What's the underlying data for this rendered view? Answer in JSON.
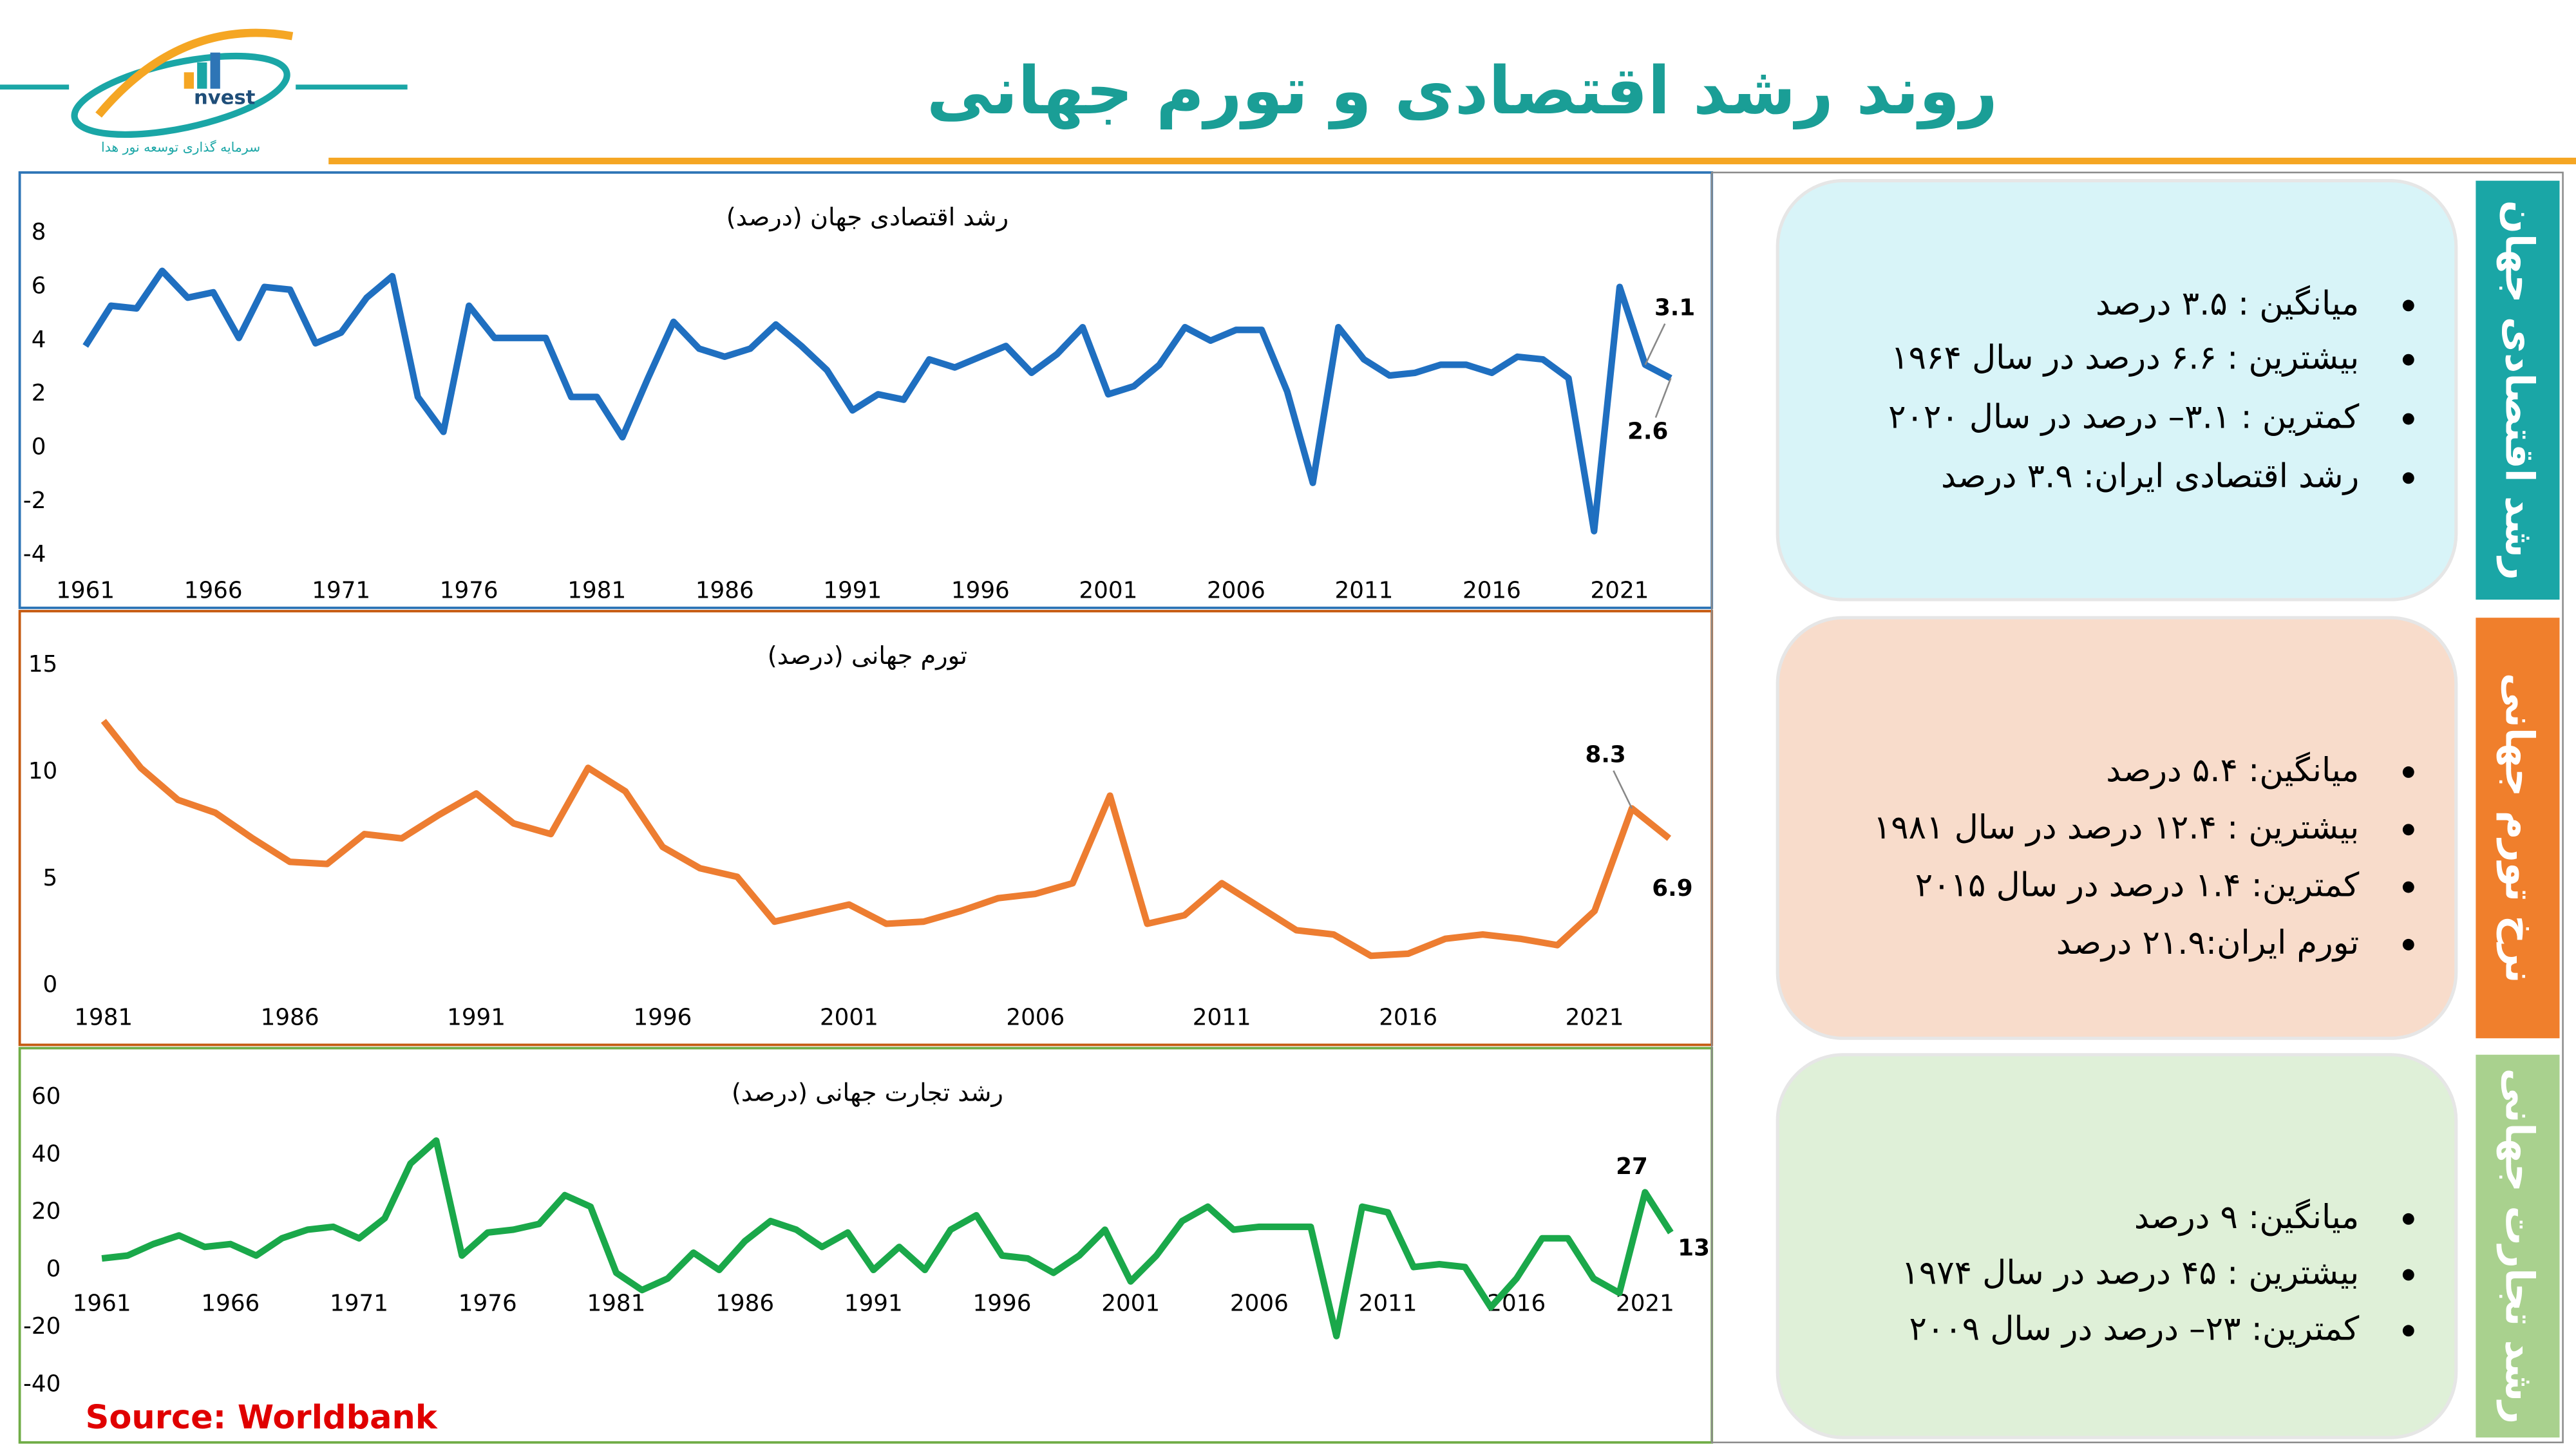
{
  "title": "روند رشد اقتصادی و تورم جهانی",
  "logo": {
    "text": "nvest",
    "caption": "سرمایه گذاری توسعه نور هدا"
  },
  "source": "Source: Worldbank",
  "panels": [
    {
      "label": "رشد اقتصادی جهان",
      "bullets": [
        "میانگین : ۳.۵ درصد",
        "بیشترین : ۶.۶ درصد در سال ۱۹۶۴",
        "کمترین : ۳.۱– درصد در سال ۲۰۲۰",
        "رشد اقتصادی ایران: ۳.۹ درصد"
      ]
    },
    {
      "label": "نرخ تورم جهانی",
      "bullets": [
        "میانگین: ۵.۴ درصد",
        "بیشترین : ۱۲.۴ درصد در سال ۱۹۸۱",
        "کمترین: ۱.۴ درصد در سال ۲۰۱۵",
        "تورم ایران:۲۱.۹ درصد"
      ]
    },
    {
      "label": "رشد تجارت جهانی",
      "bullets": [
        "میانگین:  ۹ درصد",
        "بیشترین : ۴۵ درصد در سال ۱۹۷۴",
        "کمترین: ۲۳– درصد در سال ۲۰۰۹"
      ]
    }
  ],
  "chart_data": [
    {
      "type": "line",
      "title": "رشد اقتصادی جهان (درصد)",
      "x": [
        1961,
        1962,
        1963,
        1964,
        1965,
        1966,
        1967,
        1968,
        1969,
        1970,
        1971,
        1972,
        1973,
        1974,
        1975,
        1976,
        1977,
        1978,
        1979,
        1980,
        1981,
        1982,
        1983,
        1984,
        1985,
        1986,
        1987,
        1988,
        1989,
        1990,
        1991,
        1992,
        1993,
        1994,
        1995,
        1996,
        1997,
        1998,
        1999,
        2000,
        2001,
        2002,
        2003,
        2004,
        2005,
        2006,
        2007,
        2008,
        2009,
        2010,
        2011,
        2012,
        2013,
        2014,
        2015,
        2016,
        2017,
        2018,
        2019,
        2020,
        2021,
        2022,
        2023
      ],
      "xlim": [
        1961,
        2023
      ],
      "xticks": [
        1961,
        1966,
        1971,
        1976,
        1981,
        1986,
        1991,
        1996,
        2001,
        2006,
        2011,
        2016,
        2021
      ],
      "ylim": [
        -4,
        8
      ],
      "yticks": [
        -4,
        -2,
        0,
        2,
        4,
        6,
        8
      ],
      "grid": false,
      "series": [
        {
          "color": "#1f6fc0",
          "values": [
            3.8,
            5.3,
            5.2,
            6.6,
            5.6,
            5.8,
            4.1,
            6.0,
            5.9,
            3.9,
            4.3,
            5.6,
            6.4,
            1.9,
            0.6,
            5.3,
            4.1,
            4.1,
            4.1,
            1.9,
            1.9,
            0.4,
            2.6,
            4.7,
            3.7,
            3.4,
            3.7,
            4.6,
            3.8,
            2.9,
            1.4,
            2.0,
            1.8,
            3.3,
            3.0,
            3.4,
            3.8,
            2.8,
            3.5,
            4.5,
            2.0,
            2.3,
            3.1,
            4.5,
            4.0,
            4.4,
            4.4,
            2.1,
            -1.3,
            4.5,
            3.3,
            2.7,
            2.8,
            3.1,
            3.1,
            2.8,
            3.4,
            3.3,
            2.6,
            -3.1,
            6.0,
            3.1,
            2.6
          ]
        }
      ]
    },
    {
      "type": "line",
      "title": "تورم جهانی (درصد)",
      "x": [
        1981,
        1982,
        1983,
        1984,
        1985,
        1986,
        1987,
        1988,
        1989,
        1990,
        1991,
        1992,
        1993,
        1994,
        1995,
        1996,
        1997,
        1998,
        1999,
        2000,
        2001,
        2002,
        2003,
        2004,
        2005,
        2006,
        2007,
        2008,
        2009,
        2010,
        2011,
        2012,
        2013,
        2014,
        2015,
        2016,
        2017,
        2018,
        2019,
        2020,
        2021,
        2022,
        2023
      ],
      "xlim": [
        1981,
        2023
      ],
      "xticks": [
        1981,
        1986,
        1991,
        1996,
        2001,
        2006,
        2011,
        2016,
        2021
      ],
      "ylim": [
        0,
        15
      ],
      "yticks": [
        0,
        5,
        10,
        15
      ],
      "grid": false,
      "series": [
        {
          "color": "#ed7d31",
          "values": [
            12.4,
            10.2,
            8.7,
            8.1,
            6.9,
            5.8,
            5.7,
            7.1,
            6.9,
            8.0,
            9.0,
            7.6,
            7.1,
            10.2,
            9.1,
            6.5,
            5.5,
            5.1,
            3.0,
            3.4,
            3.8,
            2.9,
            3.0,
            3.5,
            4.1,
            4.3,
            4.8,
            8.9,
            2.9,
            3.3,
            4.8,
            3.7,
            2.6,
            2.4,
            1.4,
            1.5,
            2.2,
            2.4,
            2.2,
            1.9,
            3.5,
            8.3,
            6.9
          ]
        }
      ]
    },
    {
      "type": "line",
      "title": "رشد تجارت جهانی (درصد)",
      "x": [
        1961,
        1962,
        1963,
        1964,
        1965,
        1966,
        1967,
        1968,
        1969,
        1970,
        1971,
        1972,
        1973,
        1974,
        1975,
        1976,
        1977,
        1978,
        1979,
        1980,
        1981,
        1982,
        1983,
        1984,
        1985,
        1986,
        1987,
        1988,
        1989,
        1990,
        1991,
        1992,
        1993,
        1994,
        1995,
        1996,
        1997,
        1998,
        1999,
        2000,
        2001,
        2002,
        2003,
        2004,
        2005,
        2006,
        2007,
        2008,
        2009,
        2010,
        2011,
        2012,
        2013,
        2014,
        2015,
        2016,
        2017,
        2018,
        2019,
        2020,
        2021,
        2022
      ],
      "xlim": [
        1961,
        2022
      ],
      "xticks": [
        1961,
        1966,
        1971,
        1976,
        1981,
        1986,
        1991,
        1996,
        2001,
        2006,
        2011,
        2016,
        2021
      ],
      "ylim": [
        -40,
        60
      ],
      "yticks": [
        -40,
        -20,
        0,
        20,
        40,
        60
      ],
      "grid": false,
      "series": [
        {
          "color": "#1aa84a",
          "values": [
            4,
            5,
            9,
            12,
            8,
            9,
            5,
            11,
            14,
            15,
            11,
            18,
            37,
            45,
            5,
            13,
            14,
            16,
            26,
            22,
            -1,
            -7,
            -3,
            6,
            0,
            10,
            17,
            14,
            8,
            13,
            0,
            8,
            0,
            14,
            19,
            5,
            4,
            -1,
            5,
            14,
            -4,
            5,
            17,
            22,
            14,
            15,
            15,
            15,
            -23,
            22,
            20,
            1,
            2,
            1,
            -13,
            -3,
            11,
            11,
            -3,
            -8,
            27,
            13
          ]
        }
      ]
    }
  ]
}
